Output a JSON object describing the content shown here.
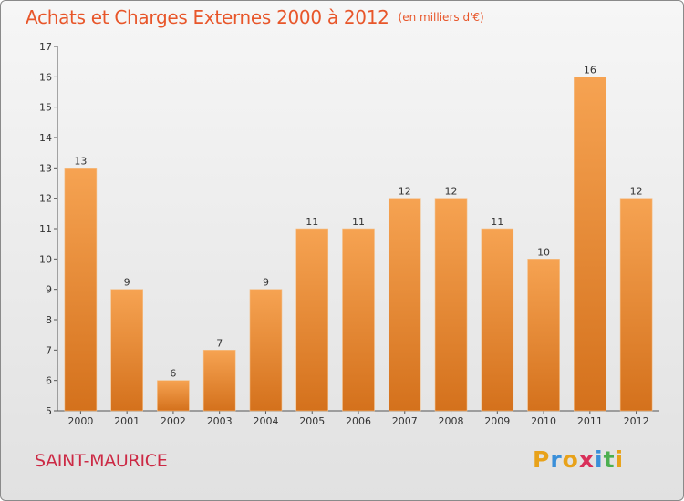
{
  "title": "Achats et Charges Externes 2000 à 2012",
  "subtitle": "(en milliers d'€)",
  "city": "SAINT-MAURICE",
  "brand": {
    "letters": [
      "P",
      "r",
      "o",
      "x",
      "i",
      "t",
      "i"
    ],
    "colors": [
      "#e8a21a",
      "#3a8fd9",
      "#e8a21a",
      "#d9305a",
      "#3a8fd9",
      "#4caf50",
      "#e8a21a"
    ]
  },
  "colors": {
    "bar_top": "#f6a352",
    "bar_bottom": "#d4711c",
    "title": "#e8562a",
    "city": "#cc2a45"
  },
  "chart_data": {
    "type": "bar",
    "title": "Achats et Charges Externes 2000 à 2012",
    "categories": [
      "2000",
      "2001",
      "2002",
      "2003",
      "2004",
      "2005",
      "2006",
      "2007",
      "2008",
      "2009",
      "2010",
      "2011",
      "2012"
    ],
    "values": [
      13,
      9,
      6,
      7,
      9,
      11,
      11,
      12,
      12,
      11,
      10,
      16,
      12
    ],
    "ylim": [
      5,
      17
    ],
    "yticks": [
      5,
      6,
      7,
      8,
      9,
      10,
      11,
      12,
      13,
      14,
      15,
      16,
      17
    ],
    "grid": false,
    "data_labels": true
  }
}
